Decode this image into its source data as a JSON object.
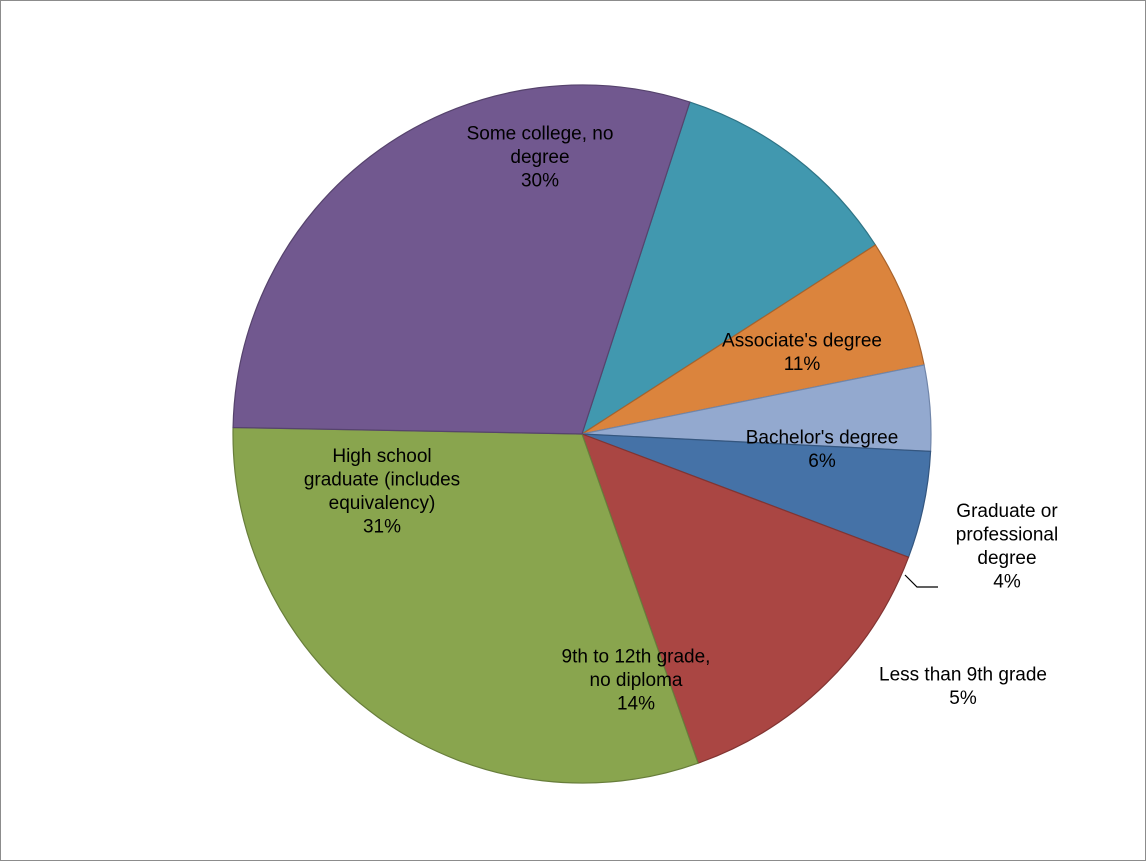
{
  "chart_data": {
    "type": "pie",
    "title": "",
    "start_angle_deg": 72,
    "direction": "clockwise",
    "legend": "none",
    "slices": [
      {
        "name": "Associate's degree",
        "label_lines": [
          "Associate's degree"
        ],
        "value": 11,
        "pct_label": "11%",
        "color": "#4198AF",
        "edge": "#2F7486",
        "label_pos": "inside"
      },
      {
        "name": "Bachelor's degree",
        "label_lines": [
          "Bachelor's degree"
        ],
        "value": 6,
        "pct_label": "6%",
        "color": "#DB843D",
        "edge": "#A8632C",
        "label_pos": "inside"
      },
      {
        "name": "Graduate or professional degree",
        "label_lines": [
          "Graduate or",
          "professional",
          "degree"
        ],
        "value": 4,
        "pct_label": "4%",
        "color": "#93A9CF",
        "edge": "#7186AA",
        "label_pos": "outside"
      },
      {
        "name": "Less than 9th grade",
        "label_lines": [
          "Less than 9th grade"
        ],
        "value": 5,
        "pct_label": "5%",
        "color": "#4572A7",
        "edge": "#34567F",
        "label_pos": "outside"
      },
      {
        "name": "9th to 12th grade, no diploma",
        "label_lines": [
          "9th to 12th grade,",
          "no diploma"
        ],
        "value": 14,
        "pct_label": "14%",
        "color": "#AA4643",
        "edge": "#823432",
        "label_pos": "inside"
      },
      {
        "name": "High school graduate (includes equivalency)",
        "label_lines": [
          "High school",
          "graduate (includes",
          "equivalency)"
        ],
        "value": 31,
        "pct_label": "31%",
        "color": "#89A54E",
        "edge": "#687E3B",
        "label_pos": "inside"
      },
      {
        "name": "Some college, no degree",
        "label_lines": [
          "Some college, no",
          "degree"
        ],
        "value": 30,
        "pct_label": "30%",
        "color": "#71588F",
        "edge": "#56436D",
        "label_pos": "inside"
      }
    ]
  }
}
